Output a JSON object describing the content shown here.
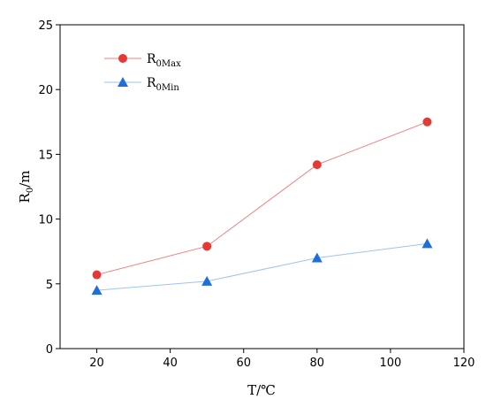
{
  "chart_data": {
    "type": "line",
    "x": [
      20,
      50,
      80,
      110
    ],
    "series": [
      {
        "name": "R0Max",
        "name_base": "R",
        "name_sub": "0Max",
        "values": [
          5.7,
          7.9,
          14.2,
          17.5
        ],
        "color": "#f08080",
        "marker_color": "#e53935",
        "marker": "circle"
      },
      {
        "name": "R0Min",
        "name_base": "R",
        "name_sub": "0Min",
        "values": [
          4.5,
          5.2,
          7.0,
          8.1
        ],
        "color": "#9ec5ee",
        "marker_color": "#1e6fd9",
        "marker": "triangle"
      }
    ],
    "xlabel": "T/℃",
    "ylabel_base": "R",
    "ylabel_sub": "0",
    "ylabel_rest": "/m",
    "xlim": [
      10,
      120
    ],
    "ylim": [
      0,
      25
    ],
    "xticks": [
      "20",
      "40",
      "60",
      "80",
      "100",
      "120"
    ],
    "yticks": [
      "0",
      "5",
      "10",
      "15",
      "20",
      "25"
    ],
    "grid": false,
    "legend_position": "top-left"
  }
}
